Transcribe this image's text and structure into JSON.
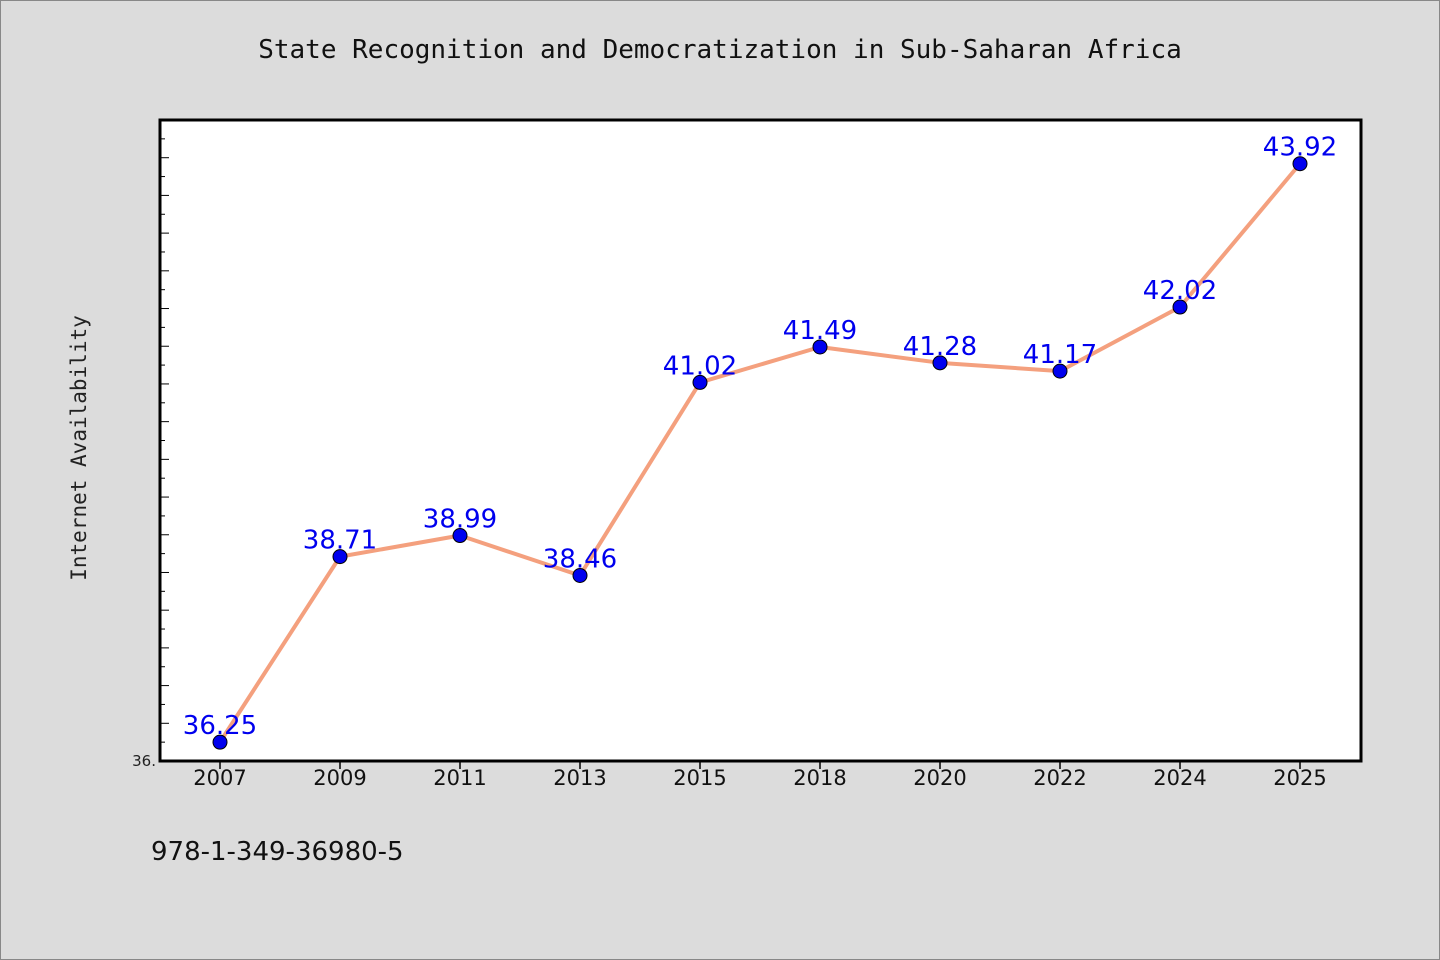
{
  "chart_data": {
    "type": "line",
    "title": "State Recognition and Democratization in Sub-Saharan Africa",
    "xlabel": "",
    "ylabel": "Internet Availability",
    "categories": [
      "2007",
      "2009",
      "2011",
      "2013",
      "2015",
      "2018",
      "2020",
      "2022",
      "2024",
      "2025"
    ],
    "series": [
      {
        "values": [
          36.25,
          38.71,
          38.99,
          38.46,
          41.02,
          41.49,
          41.28,
          41.17,
          42.02,
          43.92
        ],
        "data_labels": [
          "36.25",
          "38.71",
          "38.99",
          "38.46",
          "41.02",
          "41.49",
          "41.28",
          "41.17",
          "42.02",
          "43.92"
        ],
        "line_color": "#f4a07e",
        "marker_color": "#0000ee",
        "label_color": "#0000ee"
      }
    ],
    "ylim": [
      36.0,
      44.5
    ],
    "y_tick_labels": [
      "36."
    ],
    "grid": false,
    "legend": "none"
  },
  "footer": {
    "isbn": "978-1-349-36980-5"
  },
  "colors": {
    "background": "#dcdcdc",
    "plot_area": "#ffffff",
    "axis": "#000000"
  }
}
